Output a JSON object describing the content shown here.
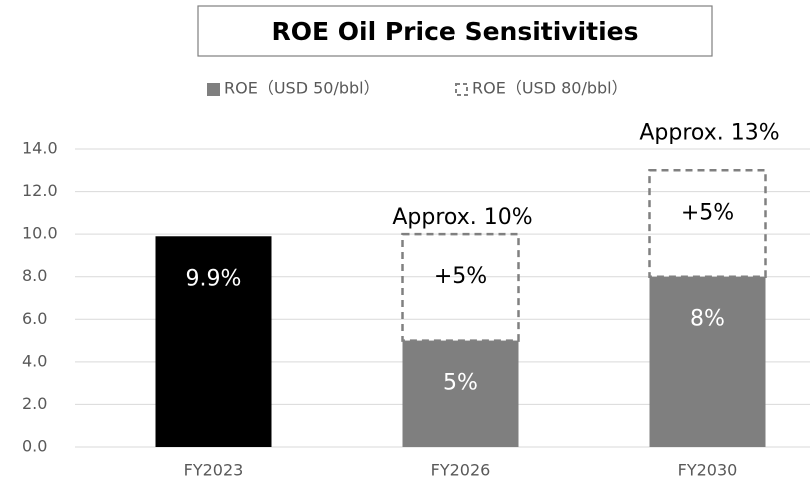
{
  "chart_data": {
    "type": "stacked_bar",
    "title": "ROE Oil Price Sensitivities",
    "categories": [
      "FY2023",
      "FY2026",
      "FY2030"
    ],
    "series": [
      {
        "name": "ROE（USD 50/bbl）",
        "color": "#7f7f7f",
        "colors": [
          "#000000",
          "#7f7f7f",
          "#7f7f7f"
        ],
        "style": "solid",
        "values": [
          9.9,
          5,
          8
        ],
        "value_labels": [
          "9.9%",
          "5%",
          "8%"
        ]
      },
      {
        "name": "ROE（USD 80/bbl）",
        "color": "#808080",
        "style": "dashed",
        "values": [
          null,
          5,
          5
        ],
        "value_labels": [
          null,
          "+5%",
          "+5%"
        ]
      }
    ],
    "annotations": [
      null,
      "Approx. 10%",
      "Approx. 13%"
    ],
    "ylim": [
      0,
      14
    ],
    "yticks": [
      {
        "value": 0,
        "label": "0.0"
      },
      {
        "value": 2,
        "label": "2.0"
      },
      {
        "value": 4,
        "label": "4.0"
      },
      {
        "value": 6,
        "label": "6.0"
      },
      {
        "value": 8,
        "label": "8.0"
      },
      {
        "value": 10,
        "label": "10.0"
      },
      {
        "value": 12,
        "label": "12.0"
      },
      {
        "value": 14,
        "label": "14.0"
      }
    ],
    "grid": true
  }
}
